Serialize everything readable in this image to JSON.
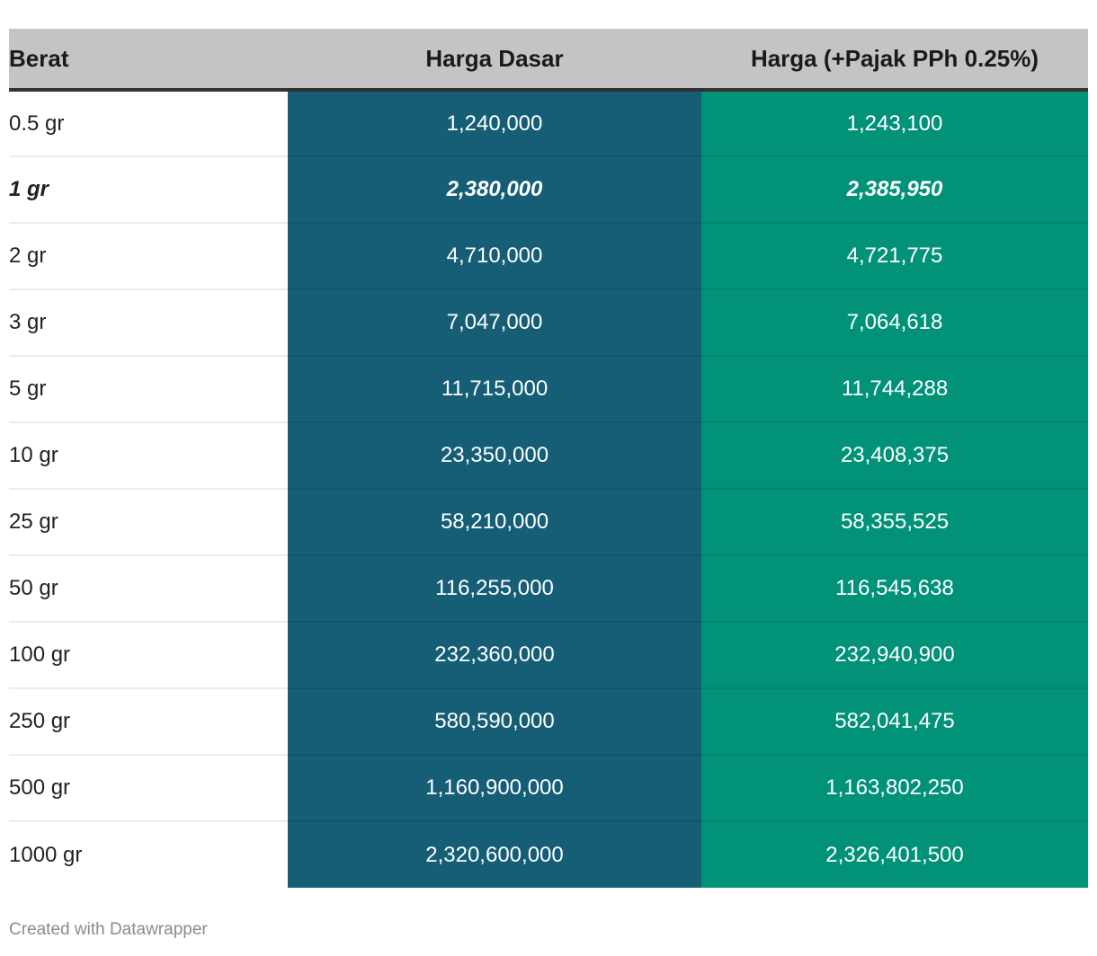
{
  "table": {
    "columns": [
      {
        "key": "berat",
        "label": "Berat"
      },
      {
        "key": "harga_dasar",
        "label": "Harga Dasar"
      },
      {
        "key": "harga_pajak",
        "label": "Harga (+Pajak PPh 0.25%)"
      }
    ],
    "rows": [
      {
        "berat": "0.5 gr",
        "harga_dasar": "1,240,000",
        "harga_pajak": "1,243,100",
        "emphasized": false
      },
      {
        "berat": "1 gr",
        "harga_dasar": "2,380,000",
        "harga_pajak": "2,385,950",
        "emphasized": true
      },
      {
        "berat": "2 gr",
        "harga_dasar": "4,710,000",
        "harga_pajak": "4,721,775",
        "emphasized": false
      },
      {
        "berat": "3 gr",
        "harga_dasar": "7,047,000",
        "harga_pajak": "7,064,618",
        "emphasized": false
      },
      {
        "berat": "5 gr",
        "harga_dasar": "11,715,000",
        "harga_pajak": "11,744,288",
        "emphasized": false
      },
      {
        "berat": "10 gr",
        "harga_dasar": "23,350,000",
        "harga_pajak": "23,408,375",
        "emphasized": false
      },
      {
        "berat": "25 gr",
        "harga_dasar": "58,210,000",
        "harga_pajak": "58,355,525",
        "emphasized": false
      },
      {
        "berat": "50 gr",
        "harga_dasar": "116,255,000",
        "harga_pajak": "116,545,638",
        "emphasized": false
      },
      {
        "berat": "100 gr",
        "harga_dasar": "232,360,000",
        "harga_pajak": "232,940,900",
        "emphasized": false
      },
      {
        "berat": "250 gr",
        "harga_dasar": "580,590,000",
        "harga_pajak": "582,041,475",
        "emphasized": false
      },
      {
        "berat": "500 gr",
        "harga_dasar": "1,160,900,000",
        "harga_pajak": "1,163,802,250",
        "emphasized": false
      },
      {
        "berat": "1000 gr",
        "harga_dasar": "2,320,600,000",
        "harga_pajak": "2,326,401,500",
        "emphasized": false
      }
    ]
  },
  "footer": {
    "credit": "Created with Datawrapper"
  },
  "colors": {
    "header_bg": "#c4c4c4",
    "header_text": "#1a1a1a",
    "header_rule": "#333333",
    "harga_dasar_bg": "#155e76",
    "harga_pajak_bg": "#029278",
    "cell_text_light": "#ffffff",
    "berat_text": "#222222",
    "row_divider": "rgba(0,0,0,0.08)",
    "credit_text": "#8b8b8b"
  },
  "chart_data": {
    "type": "table",
    "title": "",
    "columns": [
      "Berat",
      "Harga Dasar",
      "Harga (+Pajak PPh 0.25%)"
    ],
    "categories": [
      "0.5 gr",
      "1 gr",
      "2 gr",
      "3 gr",
      "5 gr",
      "10 gr",
      "25 gr",
      "50 gr",
      "100 gr",
      "250 gr",
      "500 gr",
      "1000 gr"
    ],
    "series": [
      {
        "name": "Harga Dasar",
        "values": [
          1240000,
          2380000,
          4710000,
          7047000,
          11715000,
          23350000,
          58210000,
          116255000,
          232360000,
          580590000,
          1160900000,
          2320600000
        ]
      },
      {
        "name": "Harga (+Pajak PPh 0.25%)",
        "values": [
          1243100,
          2385950,
          4721775,
          7064618,
          11744288,
          23408375,
          58355525,
          116545638,
          232940900,
          582041475,
          1163802250,
          2326401500
        ]
      }
    ],
    "emphasized_category": "1 gr",
    "legend_position": "none",
    "grid": false
  }
}
